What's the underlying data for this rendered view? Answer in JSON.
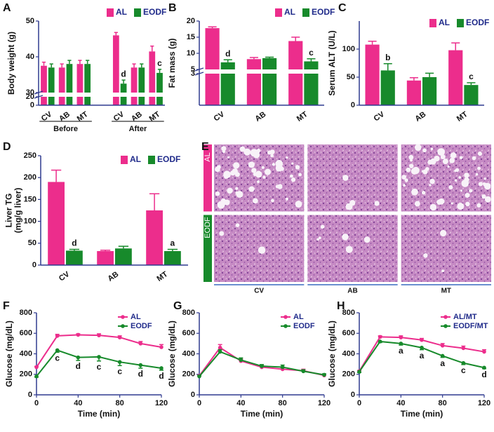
{
  "chart_data": [
    {
      "panel": "A",
      "type": "bar",
      "y_label": "Body weight (g)",
      "groups": [
        {
          "name": "Before",
          "categories": [
            "CV",
            "AB",
            "MT"
          ]
        },
        {
          "name": "After",
          "categories": [
            "CV",
            "AB",
            "MT"
          ]
        }
      ],
      "ylim": [
        0,
        50
      ],
      "ybreak": [
        20,
        30
      ],
      "yticks": [
        0,
        20,
        30,
        40,
        50
      ],
      "series": [
        {
          "name": "AL",
          "color": "#ec2d8c",
          "values": [
            37.5,
            37,
            38,
            46,
            37,
            41.5
          ],
          "errors": [
            1,
            1,
            1,
            0.8,
            1,
            1.5
          ]
        },
        {
          "name": "EODF",
          "color": "#178a2b",
          "values": [
            37,
            38,
            38,
            32.5,
            37,
            35.5
          ],
          "errors": [
            1,
            1,
            1,
            1,
            1,
            1
          ],
          "significance": [
            null,
            null,
            null,
            "d",
            null,
            "c"
          ]
        }
      ]
    },
    {
      "panel": "B",
      "type": "bar",
      "y_label": "Fat mass (g)",
      "categories": [
        "CV",
        "AB",
        "MT"
      ],
      "ylim": [
        0,
        20
      ],
      "ybreak": [
        3,
        5
      ],
      "yticks": [
        3,
        5,
        10,
        15,
        20
      ],
      "series": [
        {
          "name": "AL",
          "color": "#ec2d8c",
          "values": [
            17.8,
            8.2,
            13.8
          ],
          "errors": [
            0.4,
            0.5,
            1.2
          ]
        },
        {
          "name": "EODF",
          "color": "#178a2b",
          "values": [
            7.2,
            8.5,
            7.5
          ],
          "errors": [
            0.8,
            0.3,
            0.8
          ],
          "significance": [
            "d",
            null,
            "c"
          ]
        }
      ]
    },
    {
      "panel": "C",
      "type": "bar",
      "y_label": "Serum ALT (U/L)",
      "categories": [
        "CV",
        "AB",
        "MT"
      ],
      "ylim": [
        0,
        150
      ],
      "yticks": [
        0,
        50,
        100
      ],
      "series": [
        {
          "name": "AL",
          "color": "#ec2d8c",
          "values": [
            108,
            44,
            98
          ],
          "errors": [
            6,
            5,
            13
          ]
        },
        {
          "name": "EODF",
          "color": "#178a2b",
          "values": [
            62,
            50,
            36
          ],
          "errors": [
            12,
            7,
            4
          ],
          "significance": [
            "b",
            null,
            "c"
          ]
        }
      ]
    },
    {
      "panel": "D",
      "type": "bar",
      "y_label": [
        "Liver TG",
        "(mg/g liver)"
      ],
      "categories": [
        "CV",
        "AB",
        "MT"
      ],
      "ylim": [
        0,
        250
      ],
      "yticks": [
        0,
        50,
        100,
        150,
        200,
        250
      ],
      "series": [
        {
          "name": "AL",
          "color": "#ec2d8c",
          "values": [
            190,
            32,
            125
          ],
          "errors": [
            27,
            2,
            38
          ]
        },
        {
          "name": "EODF",
          "color": "#178a2b",
          "values": [
            33,
            38,
            32
          ],
          "errors": [
            3,
            5,
            4
          ],
          "significance": [
            "d",
            null,
            "a"
          ]
        }
      ]
    },
    {
      "panel": "E",
      "type": "image-grid",
      "rows": [
        "AL",
        "EODF"
      ],
      "columns": [
        "CV",
        "AB",
        "MT"
      ],
      "row_colors": [
        "#ec2d8c",
        "#178a2b"
      ]
    },
    {
      "panel": "F",
      "type": "line",
      "x_label": "Time (min)",
      "y_label": "Glucose (mg/dL)",
      "x": [
        0,
        20,
        40,
        60,
        80,
        100,
        120
      ],
      "xlim": [
        0,
        120
      ],
      "xticks": [
        0,
        40,
        80,
        120
      ],
      "ylim": [
        0,
        800
      ],
      "yticks": [
        0,
        200,
        400,
        600,
        800
      ],
      "series": [
        {
          "name": "AL",
          "color": "#ec2d8c",
          "values": [
            270,
            575,
            585,
            580,
            560,
            500,
            465
          ],
          "errors": [
            8,
            15,
            10,
            15,
            15,
            20,
            25
          ],
          "error_direction": "up"
        },
        {
          "name": "EODF",
          "color": "#178a2b",
          "values": [
            180,
            435,
            365,
            370,
            320,
            290,
            260
          ],
          "errors": [
            8,
            20,
            30,
            40,
            35,
            30,
            20
          ],
          "error_direction": "down",
          "significance": [
            null,
            "c",
            "d",
            "c",
            "c",
            "d",
            "d"
          ]
        }
      ]
    },
    {
      "panel": "G",
      "type": "line",
      "x_label": "Time (min)",
      "y_label": "Glucose (mg/dL)",
      "x": [
        0,
        20,
        40,
        60,
        80,
        100,
        120
      ],
      "xlim": [
        0,
        120
      ],
      "xticks": [
        0,
        40,
        80,
        120
      ],
      "ylim": [
        0,
        800
      ],
      "yticks": [
        0,
        200,
        400,
        600,
        800
      ],
      "series": [
        {
          "name": "AL",
          "color": "#ec2d8c",
          "values": [
            185,
            460,
            330,
            270,
            250,
            235,
            190
          ],
          "errors": [
            8,
            30,
            20,
            20,
            15,
            15,
            10
          ],
          "error_direction": "up"
        },
        {
          "name": "EODF",
          "color": "#178a2b",
          "values": [
            180,
            420,
            340,
            280,
            270,
            230,
            195
          ],
          "errors": [
            8,
            20,
            20,
            15,
            20,
            15,
            10
          ],
          "error_direction": "up"
        }
      ]
    },
    {
      "panel": "H",
      "type": "line",
      "x_label": "Time (min)",
      "y_label": "Glucose (mg/dL)",
      "x": [
        0,
        20,
        40,
        60,
        80,
        100,
        120
      ],
      "xlim": [
        0,
        120
      ],
      "xticks": [
        0,
        40,
        80,
        120
      ],
      "ylim": [
        0,
        800
      ],
      "yticks": [
        0,
        200,
        400,
        600,
        800
      ],
      "series": [
        {
          "name": "AL/MT",
          "color": "#ec2d8c",
          "values": [
            230,
            565,
            560,
            535,
            480,
            455,
            420
          ],
          "errors": [
            8,
            10,
            15,
            15,
            20,
            20,
            20
          ],
          "error_direction": "up"
        },
        {
          "name": "EODF/MT",
          "color": "#178a2b",
          "values": [
            225,
            520,
            500,
            460,
            380,
            310,
            265
          ],
          "errors": [
            8,
            10,
            15,
            20,
            15,
            15,
            10
          ],
          "error_direction": "down",
          "significance": [
            null,
            null,
            "a",
            "a",
            "a",
            "c",
            "d"
          ]
        }
      ]
    }
  ]
}
